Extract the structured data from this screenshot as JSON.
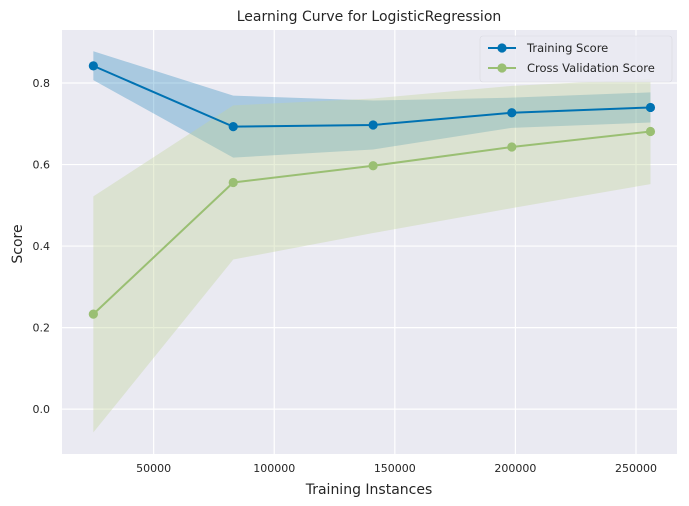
{
  "chart_data": {
    "type": "line",
    "title": "Learning Curve for LogisticRegression",
    "xlabel": "Training Instances",
    "ylabel": "Score",
    "xlim": [
      12000,
      267000
    ],
    "ylim": [
      -0.11,
      0.93
    ],
    "xticks": [
      50000,
      100000,
      150000,
      200000,
      250000
    ],
    "xtick_labels": [
      "50000",
      "100000",
      "150000",
      "200000",
      "250000"
    ],
    "yticks": [
      0.0,
      0.2,
      0.4,
      0.6,
      0.8
    ],
    "ytick_labels": [
      "0.0",
      "0.2",
      "0.4",
      "0.6",
      "0.8"
    ],
    "grid": true,
    "legend_position": "top-right",
    "x": [
      25000,
      83000,
      141000,
      198500,
      256000
    ],
    "series": [
      {
        "name": "Training Score",
        "color": "#0072B2",
        "band_color": "#0072B2",
        "values": [
          0.842,
          0.693,
          0.697,
          0.727,
          0.74
        ],
        "upper": [
          0.878,
          0.769,
          0.757,
          0.764,
          0.777
        ],
        "lower": [
          0.807,
          0.617,
          0.637,
          0.69,
          0.703
        ]
      },
      {
        "name": "Cross Validation Score",
        "color": "#9ABF73",
        "band_color": "#C2D69B",
        "values": [
          0.233,
          0.556,
          0.597,
          0.643,
          0.681
        ],
        "upper": [
          0.522,
          0.745,
          0.762,
          0.793,
          0.81
        ],
        "lower": [
          -0.057,
          0.367,
          0.432,
          0.493,
          0.552
        ]
      }
    ]
  }
}
